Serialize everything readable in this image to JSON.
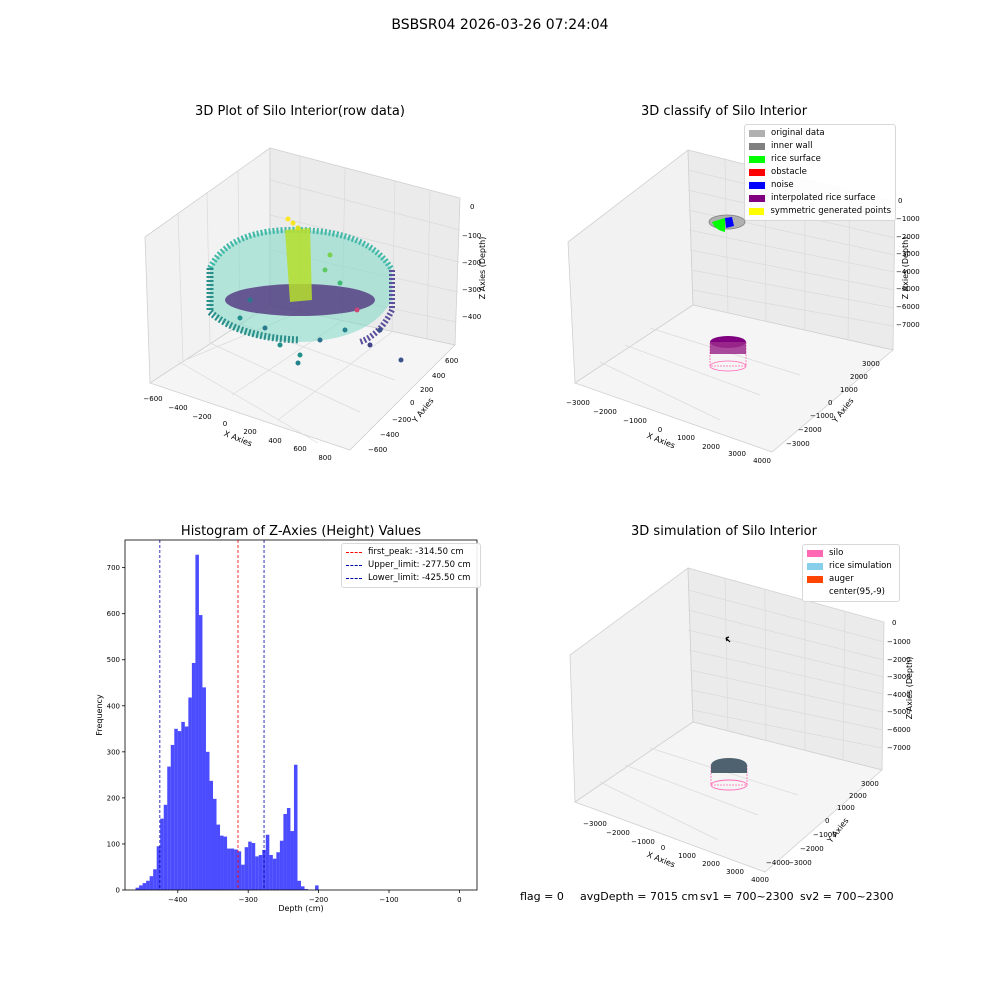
{
  "suptitle": "BSBSR04 2026-03-26 07:24:04",
  "panels": {
    "raw": {
      "title": "3D Plot of Silo Interior(row data)",
      "xlabel": "X Axies",
      "ylabel": "Y Axies",
      "zlabel": "Z Axies (Depth)",
      "xticks": [
        "−600",
        "−400",
        "−200",
        "0",
        "200",
        "400",
        "600",
        "800"
      ],
      "yticks": [
        "−600",
        "−400",
        "−200",
        "0",
        "200",
        "400",
        "600"
      ],
      "zticks": [
        "0",
        "−100",
        "−200",
        "−300",
        "−400"
      ],
      "colormap": [
        "#440154",
        "#3b528b",
        "#21918c",
        "#5ec962",
        "#c8e020",
        "#fde725"
      ]
    },
    "classify": {
      "title": "3D classify of Silo Interior",
      "xlabel": "X Axies",
      "ylabel": "Y Axies",
      "zlabel": "Z Axies (Depth)",
      "xticks": [
        "−3000",
        "−2000",
        "−1000",
        "0",
        "1000",
        "2000",
        "3000",
        "4000"
      ],
      "yticks": [
        "−3000",
        "−2000",
        "−1000",
        "0",
        "1000",
        "2000",
        "3000"
      ],
      "zticks": [
        "0",
        "−1000",
        "−2000",
        "−3000",
        "−4000",
        "−5000",
        "−6000",
        "−7000"
      ],
      "legend": [
        {
          "label": "original data",
          "color": "#b0b0b0"
        },
        {
          "label": "inner wall",
          "color": "#808080"
        },
        {
          "label": "rice surface",
          "color": "#00ff00"
        },
        {
          "label": "obstacle",
          "color": "#ff0000"
        },
        {
          "label": "noise",
          "color": "#0000ff"
        },
        {
          "label": "interpolated rice surface",
          "color": "#800080"
        },
        {
          "label": "symmetric generated points",
          "color": "#ffff00"
        }
      ]
    },
    "simulation": {
      "title": "3D simulation of Silo Interior",
      "xlabel": "X Axies",
      "ylabel": "Y Axies",
      "zlabel": "Z Axies (Depth)",
      "xticks": [
        "−3000",
        "−2000",
        "−1000",
        "0",
        "1000",
        "2000",
        "3000",
        "4000"
      ],
      "yticks": [
        "−4000",
        "−3000",
        "−2000",
        "−1000",
        "0",
        "1000",
        "2000",
        "3000"
      ],
      "zticks": [
        "0",
        "−1000",
        "−2000",
        "−3000",
        "−4000",
        "−5000",
        "−6000",
        "−7000"
      ],
      "legend": [
        {
          "label": "silo",
          "color": "#ff69b4"
        },
        {
          "label": "rice simulation",
          "color": "#87ceeb"
        },
        {
          "label": "auger",
          "color": "#ff4500"
        },
        {
          "label": "center(95,-9)",
          "color": ""
        }
      ]
    }
  },
  "status": {
    "flag": "flag = 0",
    "avg": "avgDepth = 7015 cm",
    "sv1": "sv1 = 700~2300",
    "sv2": "sv2 = 700~2300"
  },
  "chart_data": [
    {
      "type": "bar",
      "title": "Histogram of Z-Axies (Height) Values",
      "xlabel": "Depth (cm)",
      "ylabel": "Frequency",
      "xlim": [
        -475,
        25
      ],
      "ylim": [
        0,
        760
      ],
      "xticks": [
        -400,
        -300,
        -200,
        -100,
        0
      ],
      "yticks": [
        0,
        100,
        200,
        300,
        400,
        500,
        600,
        700
      ],
      "bin_start": -460,
      "bin_width": 5,
      "values": [
        5,
        10,
        15,
        20,
        30,
        45,
        95,
        155,
        185,
        268,
        315,
        350,
        345,
        365,
        355,
        418,
        493,
        728,
        597,
        440,
        300,
        237,
        198,
        142,
        118,
        116,
        90,
        90,
        88,
        84,
        55,
        93,
        105,
        102,
        73,
        76,
        87,
        120,
        76,
        68,
        82,
        107,
        165,
        178,
        128,
        272,
        20,
        8,
        2,
        0,
        0,
        10
      ],
      "color": "#0000ff",
      "lines": [
        {
          "label": "first_peak: -314.50 cm",
          "x": -314.5,
          "color": "#ff0000"
        },
        {
          "label": "Upper_limit: -277.50 cm",
          "x": -277.5,
          "color": "#0000aa"
        },
        {
          "label": "Lower_limit: -425.50 cm",
          "x": -425.5,
          "color": "#0000aa"
        }
      ],
      "legend_position": "top-right"
    }
  ]
}
